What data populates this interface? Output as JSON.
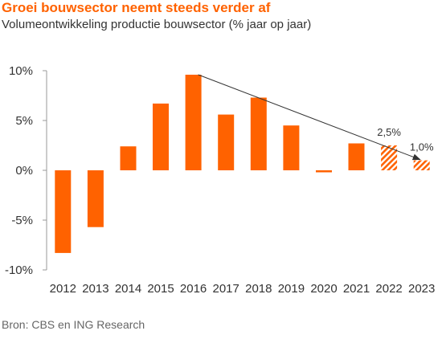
{
  "title": "Groei bouwsector neemt steeds verder af",
  "subtitle": "Volumeontwikkeling productie bouwsector (% jaar op jaar)",
  "source": "Bron: CBS en ING Research",
  "colors": {
    "bar": "#ff6200",
    "title": "#ff6200",
    "axis": "#999999",
    "trend": "#333333"
  },
  "chart_data": {
    "type": "bar",
    "categories": [
      "2012",
      "2013",
      "2014",
      "2015",
      "2016",
      "2017",
      "2018",
      "2019",
      "2020",
      "2021",
      "2022",
      "2023"
    ],
    "values": [
      -8.3,
      -5.7,
      2.4,
      6.7,
      9.6,
      5.6,
      7.3,
      4.5,
      -0.2,
      2.7,
      2.5,
      1.0
    ],
    "forecast": [
      false,
      false,
      false,
      false,
      false,
      false,
      false,
      false,
      false,
      false,
      true,
      true
    ],
    "data_labels": [
      {
        "category": "2022",
        "text": "2,5%"
      },
      {
        "category": "2023",
        "text": "1,0%"
      }
    ],
    "trend_arrow": {
      "from": "2016",
      "to": "2023"
    },
    "y_ticks": [
      10,
      5,
      0,
      -5,
      -10
    ],
    "y_tick_labels": [
      "10%",
      "5%",
      "0%",
      "-5%",
      "-10%"
    ],
    "ylim": [
      -10,
      10
    ],
    "grid": false
  }
}
